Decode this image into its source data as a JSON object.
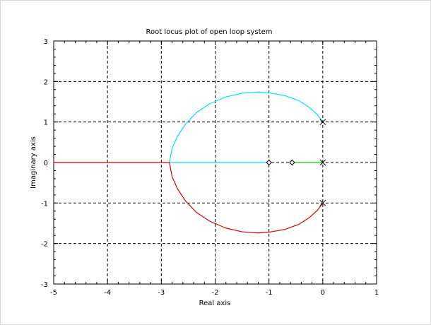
{
  "chart_data": {
    "type": "line",
    "title": "Root locus plot of open loop system",
    "xlabel": "Real axis",
    "ylabel": "Imaginary axis",
    "xlim": [
      -5,
      1
    ],
    "ylim": [
      -3,
      3
    ],
    "xticks": [
      -5,
      -4,
      -3,
      -2,
      -1,
      0,
      1
    ],
    "yticks": [
      -3,
      -2,
      -1,
      0,
      1,
      2,
      3
    ],
    "grid": true,
    "poles": [
      {
        "x": 0,
        "y": 1
      },
      {
        "x": 0,
        "y": 0
      },
      {
        "x": 0,
        "y": -1
      }
    ],
    "zeros": [
      {
        "x": -1.0,
        "y": 0
      },
      {
        "x": -0.57,
        "y": 0
      }
    ],
    "series": [
      {
        "color": "#00dfff",
        "points": [
          [
            0,
            1
          ],
          [
            -0.1,
            1.18
          ],
          [
            -0.25,
            1.36
          ],
          [
            -0.45,
            1.53
          ],
          [
            -0.7,
            1.65
          ],
          [
            -1.0,
            1.72
          ],
          [
            -1.2,
            1.74
          ],
          [
            -1.5,
            1.71
          ],
          [
            -1.8,
            1.62
          ],
          [
            -2.1,
            1.45
          ],
          [
            -2.35,
            1.23
          ],
          [
            -2.55,
            0.95
          ],
          [
            -2.7,
            0.65
          ],
          [
            -2.8,
            0.35
          ],
          [
            -2.85,
            0.0
          ],
          [
            -1.0,
            0.0
          ]
        ]
      },
      {
        "color": "#d80000",
        "points": [
          [
            0,
            -1
          ],
          [
            -0.1,
            -1.18
          ],
          [
            -0.25,
            -1.36
          ],
          [
            -0.45,
            -1.53
          ],
          [
            -0.7,
            -1.65
          ],
          [
            -1.0,
            -1.72
          ],
          [
            -1.2,
            -1.74
          ],
          [
            -1.5,
            -1.71
          ],
          [
            -1.8,
            -1.62
          ],
          [
            -2.1,
            -1.45
          ],
          [
            -2.35,
            -1.23
          ],
          [
            -2.55,
            -0.95
          ],
          [
            -2.7,
            -0.65
          ],
          [
            -2.8,
            -0.35
          ],
          [
            -2.85,
            0.0
          ],
          [
            -5.0,
            0.0
          ]
        ]
      },
      {
        "color": "#00cc00",
        "points": [
          [
            0,
            0
          ],
          [
            -0.57,
            0
          ]
        ]
      }
    ]
  }
}
